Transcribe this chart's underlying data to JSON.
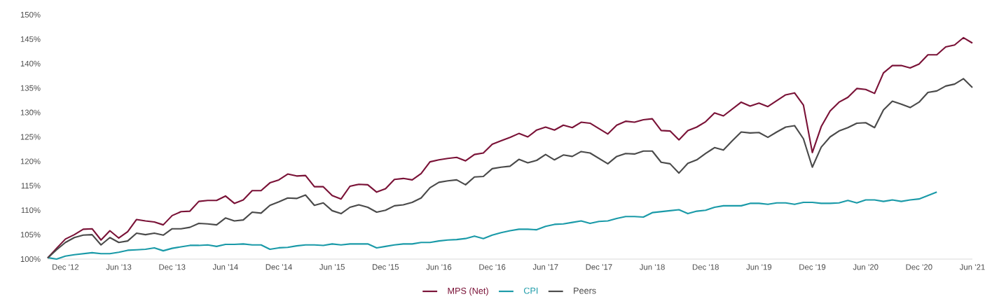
{
  "chart_data": {
    "type": "line",
    "x": [
      "2012-10",
      "2012-11",
      "2012-12",
      "2013-01",
      "2013-02",
      "2013-03",
      "2013-04",
      "2013-05",
      "2013-06",
      "2013-07",
      "2013-08",
      "2013-09",
      "2013-10",
      "2013-11",
      "2013-12",
      "2014-01",
      "2014-02",
      "2014-03",
      "2014-04",
      "2014-05",
      "2014-06",
      "2014-07",
      "2014-08",
      "2014-09",
      "2014-10",
      "2014-11",
      "2014-12",
      "2015-01",
      "2015-02",
      "2015-03",
      "2015-04",
      "2015-05",
      "2015-06",
      "2015-07",
      "2015-08",
      "2015-09",
      "2015-10",
      "2015-11",
      "2015-12",
      "2016-01",
      "2016-02",
      "2016-03",
      "2016-04",
      "2016-05",
      "2016-06",
      "2016-07",
      "2016-08",
      "2016-09",
      "2016-10",
      "2016-11",
      "2016-12",
      "2017-01",
      "2017-02",
      "2017-03",
      "2017-04",
      "2017-05",
      "2017-06",
      "2017-07",
      "2017-08",
      "2017-09",
      "2017-10",
      "2017-11",
      "2017-12",
      "2018-01",
      "2018-02",
      "2018-03",
      "2018-04",
      "2018-05",
      "2018-06",
      "2018-07",
      "2018-08",
      "2018-09",
      "2018-10",
      "2018-11",
      "2018-12",
      "2019-01",
      "2019-02",
      "2019-03",
      "2019-04",
      "2019-05",
      "2019-06",
      "2019-07",
      "2019-08",
      "2019-09",
      "2019-10",
      "2019-11",
      "2019-12",
      "2020-01",
      "2020-02",
      "2020-03",
      "2020-04",
      "2020-05",
      "2020-06",
      "2020-07",
      "2020-08",
      "2020-09",
      "2020-10",
      "2020-11",
      "2020-12",
      "2021-01",
      "2021-02",
      "2021-03",
      "2021-04",
      "2021-05",
      "2021-06"
    ],
    "series": [
      {
        "name": "MPS (Net)",
        "color": "#7a1237",
        "values": [
          100.2,
          102.2,
          104.1,
          105.0,
          106.1,
          106.2,
          103.9,
          105.8,
          104.3,
          105.6,
          108.1,
          107.8,
          107.6,
          107.0,
          108.9,
          109.7,
          109.8,
          111.8,
          112.0,
          112.0,
          112.9,
          111.4,
          112.1,
          114.0,
          114.0,
          115.6,
          116.2,
          117.4,
          117.0,
          117.1,
          114.8,
          114.8,
          113.0,
          112.3,
          114.9,
          115.3,
          115.2,
          113.7,
          114.4,
          116.3,
          116.5,
          116.2,
          117.5,
          119.9,
          120.3,
          120.6,
          120.8,
          120.1,
          121.4,
          121.7,
          123.5,
          124.2,
          124.9,
          125.7,
          125.0,
          126.4,
          127.0,
          126.4,
          127.4,
          126.9,
          128.0,
          127.8,
          126.7,
          125.6,
          127.4,
          128.2,
          128.0,
          128.5,
          128.7,
          126.3,
          126.2,
          124.4,
          126.3,
          127.0,
          128.1,
          129.9,
          129.3,
          130.7,
          132.1,
          131.3,
          131.9,
          131.2,
          132.4,
          133.6,
          134.0,
          131.5,
          121.8,
          127.1,
          130.3,
          132.1,
          133.1,
          134.9,
          134.7,
          133.9,
          138.1,
          139.6,
          139.6,
          139.1,
          139.9,
          141.8,
          141.8,
          143.4,
          143.8,
          145.3,
          144.2
        ]
      },
      {
        "name": "CPI",
        "color": "#1a9aa8",
        "values": [
          100.3,
          100.0,
          100.6,
          100.9,
          101.1,
          101.3,
          101.1,
          101.1,
          101.4,
          101.8,
          101.9,
          102.0,
          102.3,
          101.7,
          102.2,
          102.5,
          102.8,
          102.8,
          102.9,
          102.6,
          103.0,
          103.0,
          103.1,
          102.9,
          102.9,
          102.0,
          102.3,
          102.4,
          102.7,
          102.9,
          102.9,
          102.8,
          103.1,
          102.9,
          103.1,
          103.1,
          103.1,
          102.3,
          102.6,
          102.9,
          103.1,
          103.1,
          103.4,
          103.4,
          103.7,
          103.9,
          104.0,
          104.2,
          104.7,
          104.2,
          104.9,
          105.4,
          105.8,
          106.1,
          106.1,
          106.0,
          106.7,
          107.1,
          107.2,
          107.5,
          107.8,
          107.3,
          107.7,
          107.8,
          108.3,
          108.7,
          108.7,
          108.6,
          109.5,
          109.7,
          109.9,
          110.1,
          109.3,
          109.8,
          110.0,
          110.6,
          110.9,
          110.9,
          110.9,
          111.4,
          111.4,
          111.2,
          111.5,
          111.5,
          111.2,
          111.6,
          111.6,
          111.4,
          111.4,
          111.5,
          112.0,
          111.5,
          112.1,
          112.1,
          111.8,
          112.1,
          111.8,
          112.1,
          112.3,
          113.0,
          113.7,
          null,
          null,
          null,
          null
        ]
      },
      {
        "name": "Peers",
        "color": "#4a4a4a",
        "values": [
          100.2,
          101.9,
          103.4,
          104.4,
          104.9,
          105.0,
          102.9,
          104.4,
          103.4,
          103.7,
          105.3,
          105.0,
          105.3,
          104.9,
          106.2,
          106.2,
          106.5,
          107.3,
          107.2,
          107.0,
          108.4,
          107.8,
          108.0,
          109.6,
          109.4,
          111.0,
          111.7,
          112.5,
          112.4,
          113.1,
          111.0,
          111.5,
          109.9,
          109.3,
          110.6,
          111.1,
          110.6,
          109.6,
          110.0,
          110.9,
          111.1,
          111.6,
          112.5,
          114.6,
          115.7,
          116.0,
          116.2,
          115.2,
          116.8,
          116.9,
          118.5,
          118.8,
          119.0,
          120.4,
          119.7,
          120.2,
          121.4,
          120.3,
          121.3,
          121.0,
          122.0,
          121.7,
          120.6,
          119.5,
          121.0,
          121.6,
          121.5,
          122.1,
          122.1,
          119.8,
          119.5,
          117.6,
          119.6,
          120.3,
          121.6,
          122.8,
          122.3,
          124.2,
          126.0,
          125.8,
          125.9,
          124.9,
          126.0,
          127.0,
          127.3,
          124.6,
          118.8,
          122.9,
          125.0,
          126.2,
          126.9,
          127.8,
          127.9,
          126.9,
          130.5,
          132.3,
          131.7,
          131.0,
          132.1,
          134.1,
          134.4,
          135.4,
          135.8,
          136.9,
          135.1
        ]
      }
    ],
    "xlim": [
      "2012-10",
      "2021-06"
    ],
    "xticks": [
      {
        "value": "2012-12",
        "label": "Dec ’12"
      },
      {
        "value": "2013-06",
        "label": "Jun ’13"
      },
      {
        "value": "2013-12",
        "label": "Dec ’13"
      },
      {
        "value": "2014-06",
        "label": "Jun ’14"
      },
      {
        "value": "2014-12",
        "label": "Dec ’14"
      },
      {
        "value": "2015-06",
        "label": "Jun ’15"
      },
      {
        "value": "2015-12",
        "label": "Dec ’15"
      },
      {
        "value": "2016-06",
        "label": "Jun ’16"
      },
      {
        "value": "2016-12",
        "label": "Dec ’16"
      },
      {
        "value": "2017-06",
        "label": "Jun ’17"
      },
      {
        "value": "2017-12",
        "label": "Dec ’17"
      },
      {
        "value": "2018-06",
        "label": "Jun ’18"
      },
      {
        "value": "2018-12",
        "label": "Dec ’18"
      },
      {
        "value": "2019-06",
        "label": "Jun ’19"
      },
      {
        "value": "2019-12",
        "label": "Dec ’19"
      },
      {
        "value": "2020-06",
        "label": "Jun ’20"
      },
      {
        "value": "2020-12",
        "label": "Dec ’20"
      },
      {
        "value": "2021-06",
        "label": "Jun ’21"
      }
    ],
    "ylim": [
      100,
      150
    ],
    "yticks": [
      {
        "value": 100,
        "label": "100%"
      },
      {
        "value": 105,
        "label": "105%"
      },
      {
        "value": 110,
        "label": "110%"
      },
      {
        "value": 115,
        "label": "115%"
      },
      {
        "value": 120,
        "label": "120%"
      },
      {
        "value": 125,
        "label": "125%"
      },
      {
        "value": 130,
        "label": "130%"
      },
      {
        "value": 135,
        "label": "135%"
      },
      {
        "value": 140,
        "label": "140%"
      },
      {
        "value": 145,
        "label": "145%"
      },
      {
        "value": 150,
        "label": "150%"
      }
    ],
    "grid": false,
    "legend": "bottom"
  }
}
